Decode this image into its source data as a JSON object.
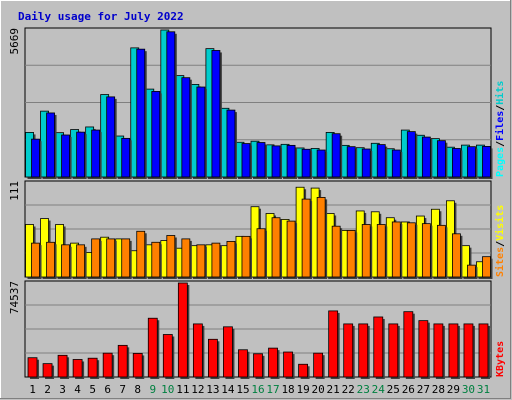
{
  "colors": {
    "frame_bg": "#c0c0c0",
    "plot_bg": "#c0c0c0",
    "grid": "#808080",
    "title": "#0000cc",
    "hits": "#00cccc",
    "files": "#0000ff",
    "pages": "#00ffff",
    "visits": "#ffff00",
    "sites": "#ff8000",
    "kbytes": "#ff0000",
    "weekday_label": "#000000",
    "weekend_label": "#008040",
    "slash": "#000000"
  },
  "chart_data": {
    "type": "bar",
    "title": "Daily usage for July 2022",
    "categories": [
      "1",
      "2",
      "3",
      "4",
      "5",
      "6",
      "7",
      "8",
      "9",
      "10",
      "11",
      "12",
      "13",
      "14",
      "15",
      "16",
      "17",
      "18",
      "19",
      "20",
      "21",
      "22",
      "23",
      "24",
      "25",
      "26",
      "27",
      "28",
      "29",
      "30",
      "31"
    ],
    "weekend_days": [
      "9",
      "10",
      "16",
      "17",
      "23",
      "24",
      "30",
      "31"
    ],
    "panels": [
      {
        "id": "hits-files-pages",
        "scale_label": "5669",
        "ymax": 5669,
        "legend": [
          {
            "label": "Pages",
            "color_key": "pages"
          },
          {
            "label": "Files",
            "color_key": "files"
          },
          {
            "label": "Hits",
            "color_key": "hits"
          }
        ],
        "series": [
          {
            "name": "Hits",
            "values": [
              1720,
              2540,
              1710,
              1830,
              1930,
              3180,
              1580,
              4980,
              3390,
              5669,
              3910,
              3570,
              4950,
              2650,
              1340,
              1380,
              1240,
              1260,
              1120,
              1100,
              1720,
              1220,
              1130,
              1300,
              1090,
              1810,
              1610,
              1480,
              1150,
              1230,
              1230
            ]
          },
          {
            "name": "Files",
            "values": [
              1460,
              2470,
              1620,
              1730,
              1810,
              3090,
              1490,
              4930,
              3300,
              5600,
              3830,
              3470,
              4880,
              2580,
              1290,
              1330,
              1200,
              1220,
              1070,
              1040,
              1670,
              1170,
              1080,
              1250,
              1040,
              1750,
              1540,
              1400,
              1100,
              1170,
              1180
            ]
          }
        ]
      },
      {
        "id": "visits-sites",
        "scale_label": "111",
        "ymax": 111,
        "legend": [
          {
            "label": "Sites",
            "color_key": "sites"
          },
          {
            "label": "Visits",
            "color_key": "visits"
          }
        ],
        "series": [
          {
            "name": "Visits",
            "values": [
              62,
              69,
              62,
              40,
              29,
              47,
              45,
              31,
              38,
              43,
              34,
              37,
              38,
              37,
              48,
              83,
              75,
              68,
              106,
              105,
              75,
              55,
              78,
              77,
              70,
              65,
              72,
              80,
              90,
              37,
              18
            ]
          },
          {
            "name": "Sites",
            "values": [
              40,
              41,
              38,
              38,
              45,
              45,
              45,
              54,
              41,
              49,
              45,
              38,
              40,
              42,
              48,
              57,
              70,
              66,
              92,
              94,
              60,
              55,
              62,
              62,
              65,
              64,
              63,
              61,
              51,
              14,
              24
            ]
          }
        ]
      },
      {
        "id": "kbytes",
        "scale_label": "74537",
        "ymax": 74537,
        "legend": [
          {
            "label": "KBytes",
            "color_key": "kbytes"
          }
        ],
        "series": [
          {
            "name": "KBytes",
            "values": [
              15300,
              10600,
              17200,
              13900,
              14900,
              18900,
              25100,
              18700,
              46600,
              33700,
              74537,
              42100,
              29900,
              39800,
              21600,
              18400,
              22900,
              19800,
              10100,
              18900,
              52400,
              42100,
              42100,
              47600,
              42100,
              51800,
              44700,
              42100,
              42100,
              42100,
              42100
            ]
          }
        ]
      }
    ]
  }
}
